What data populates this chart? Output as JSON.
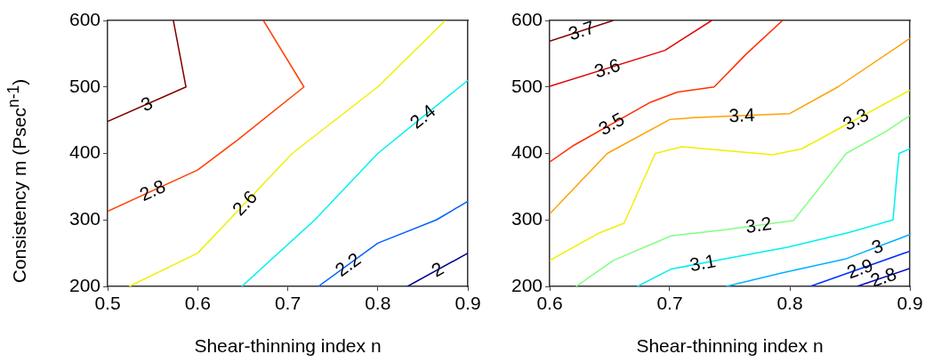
{
  "chart_data": [
    {
      "type": "line",
      "xlabel": "Shear-thinning index n",
      "ylabel": "Consistency m (Psec$^{n-1}$)",
      "xlim": [
        0.5,
        0.9
      ],
      "ylim": [
        200,
        600
      ],
      "xticks": [
        0.5,
        0.6,
        0.7,
        0.8,
        0.9
      ],
      "yticks": [
        200,
        300,
        400,
        500,
        600
      ],
      "grid": false,
      "legend": false,
      "marker": "none",
      "series": [
        {
          "name": "3",
          "color": "#800000",
          "x": [
            0.573,
            0.587,
            0.5
          ],
          "values": [
            600,
            500,
            448
          ]
        },
        {
          "name": "2.8",
          "color": "#ff4000",
          "x": [
            0.673,
            0.718,
            0.644,
            0.6,
            0.5
          ],
          "values": [
            600,
            500,
            420,
            375,
            313
          ]
        },
        {
          "name": "2.6",
          "color": "#f0f000",
          "x": [
            0.875,
            0.8,
            0.705,
            0.6,
            0.524
          ],
          "values": [
            600,
            500,
            400,
            250,
            200
          ]
        },
        {
          "name": "2.4",
          "color": "#00f0f0",
          "x": [
            0.9,
            0.8,
            0.73,
            0.649
          ],
          "values": [
            510,
            400,
            300,
            200
          ]
        },
        {
          "name": "2.2",
          "color": "#0060ff",
          "x": [
            0.9,
            0.865,
            0.8,
            0.734
          ],
          "values": [
            328,
            300,
            265,
            200
          ]
        },
        {
          "name": "2",
          "color": "#000090",
          "x": [
            0.9,
            0.833
          ],
          "values": [
            250,
            200
          ]
        }
      ]
    },
    {
      "type": "line",
      "xlabel": "Shear-thinning index n",
      "xlim": [
        0.6,
        0.9
      ],
      "ylim": [
        200,
        600
      ],
      "xticks": [
        0.6,
        0.7,
        0.8,
        0.9
      ],
      "yticks": [
        200,
        300,
        400,
        500,
        600
      ],
      "grid": false,
      "legend": false,
      "marker": "none",
      "series": [
        {
          "name": "3.7",
          "color": "#800000",
          "x": [
            0.6,
            0.653
          ],
          "values": [
            569,
            600
          ]
        },
        {
          "name": "3.6",
          "color": "#e00000",
          "x": [
            0.6,
            0.696,
            0.735
          ],
          "values": [
            501,
            555,
            600
          ]
        },
        {
          "name": "3.5",
          "color": "#ff3000",
          "x": [
            0.794,
            0.764,
            0.737,
            0.706,
            0.684,
            0.619,
            0.6
          ],
          "values": [
            600,
            550,
            500,
            492,
            477,
            411,
            387
          ]
        },
        {
          "name": "3.4",
          "color": "#ffa000",
          "x": [
            0.9,
            0.84,
            0.8,
            0.72,
            0.7,
            0.648,
            0.6
          ],
          "values": [
            573,
            500,
            460,
            454,
            451,
            400,
            309
          ]
        },
        {
          "name": "3.3",
          "color": "#f0f000",
          "x": [
            0.9,
            0.81,
            0.786,
            0.71,
            0.688,
            0.662,
            0.642,
            0.6
          ],
          "values": [
            495,
            407,
            398,
            410,
            400,
            295,
            281,
            239
          ]
        },
        {
          "name": "3.2",
          "color": "#80ff80",
          "x": [
            0.9,
            0.88,
            0.847,
            0.822,
            0.803,
            0.745,
            0.701,
            0.653,
            0.622
          ],
          "values": [
            457,
            433,
            400,
            342,
            299,
            285,
            276,
            239,
            200
          ]
        },
        {
          "name": "3.1",
          "color": "#00f0f0",
          "x": [
            0.9,
            0.891,
            0.889,
            0.886,
            0.849,
            0.798,
            0.754,
            0.701,
            0.673
          ],
          "values": [
            407,
            400,
            363,
            300,
            281,
            259,
            244,
            226,
            200
          ]
        },
        {
          "name": "3",
          "color": "#00b0ff",
          "x": [
            0.9,
            0.846,
            0.793,
            0.747
          ],
          "values": [
            278,
            241,
            220,
            200
          ]
        },
        {
          "name": "2.9",
          "color": "#0030ff",
          "x": [
            0.9,
            0.817
          ],
          "values": [
            253,
            200
          ]
        },
        {
          "name": "2.8",
          "color": "#0000c0",
          "x": [
            0.9,
            0.856
          ],
          "values": [
            227,
            200
          ]
        }
      ]
    }
  ]
}
